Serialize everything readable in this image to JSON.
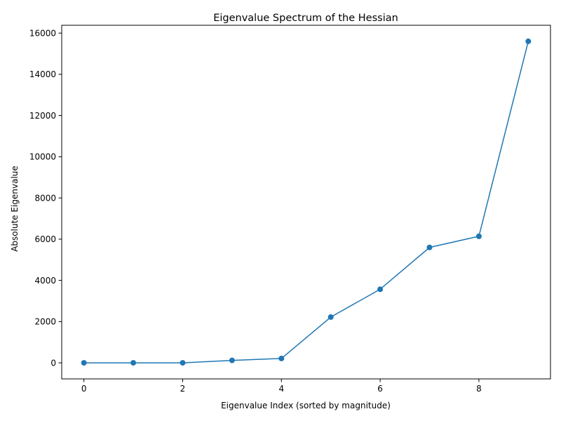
{
  "chart_data": {
    "type": "line",
    "title": "Eigenvalue Spectrum of the Hessian",
    "xlabel": "Eigenvalue Index (sorted by magnitude)",
    "ylabel": "Absolute Eigenvalue",
    "xlim": [
      -0.45,
      9.45
    ],
    "ylim": [
      -780,
      16380
    ],
    "xticks": [
      0,
      2,
      4,
      6,
      8
    ],
    "yticks": [
      0,
      2000,
      4000,
      6000,
      8000,
      10000,
      12000,
      14000,
      16000
    ],
    "xtick_labels": [
      "0",
      "2",
      "4",
      "6",
      "8"
    ],
    "ytick_labels": [
      "0",
      "2000",
      "4000",
      "6000",
      "8000",
      "10000",
      "12000",
      "14000",
      "16000"
    ],
    "grid": false,
    "marker": "circle",
    "color": "#1f77b4",
    "series": [
      {
        "x": [
          0,
          1,
          2,
          3,
          4,
          5,
          6,
          7,
          8,
          9
        ],
        "values": [
          0,
          0,
          0,
          120,
          210,
          2220,
          3570,
          5600,
          6140,
          15600
        ]
      }
    ]
  }
}
